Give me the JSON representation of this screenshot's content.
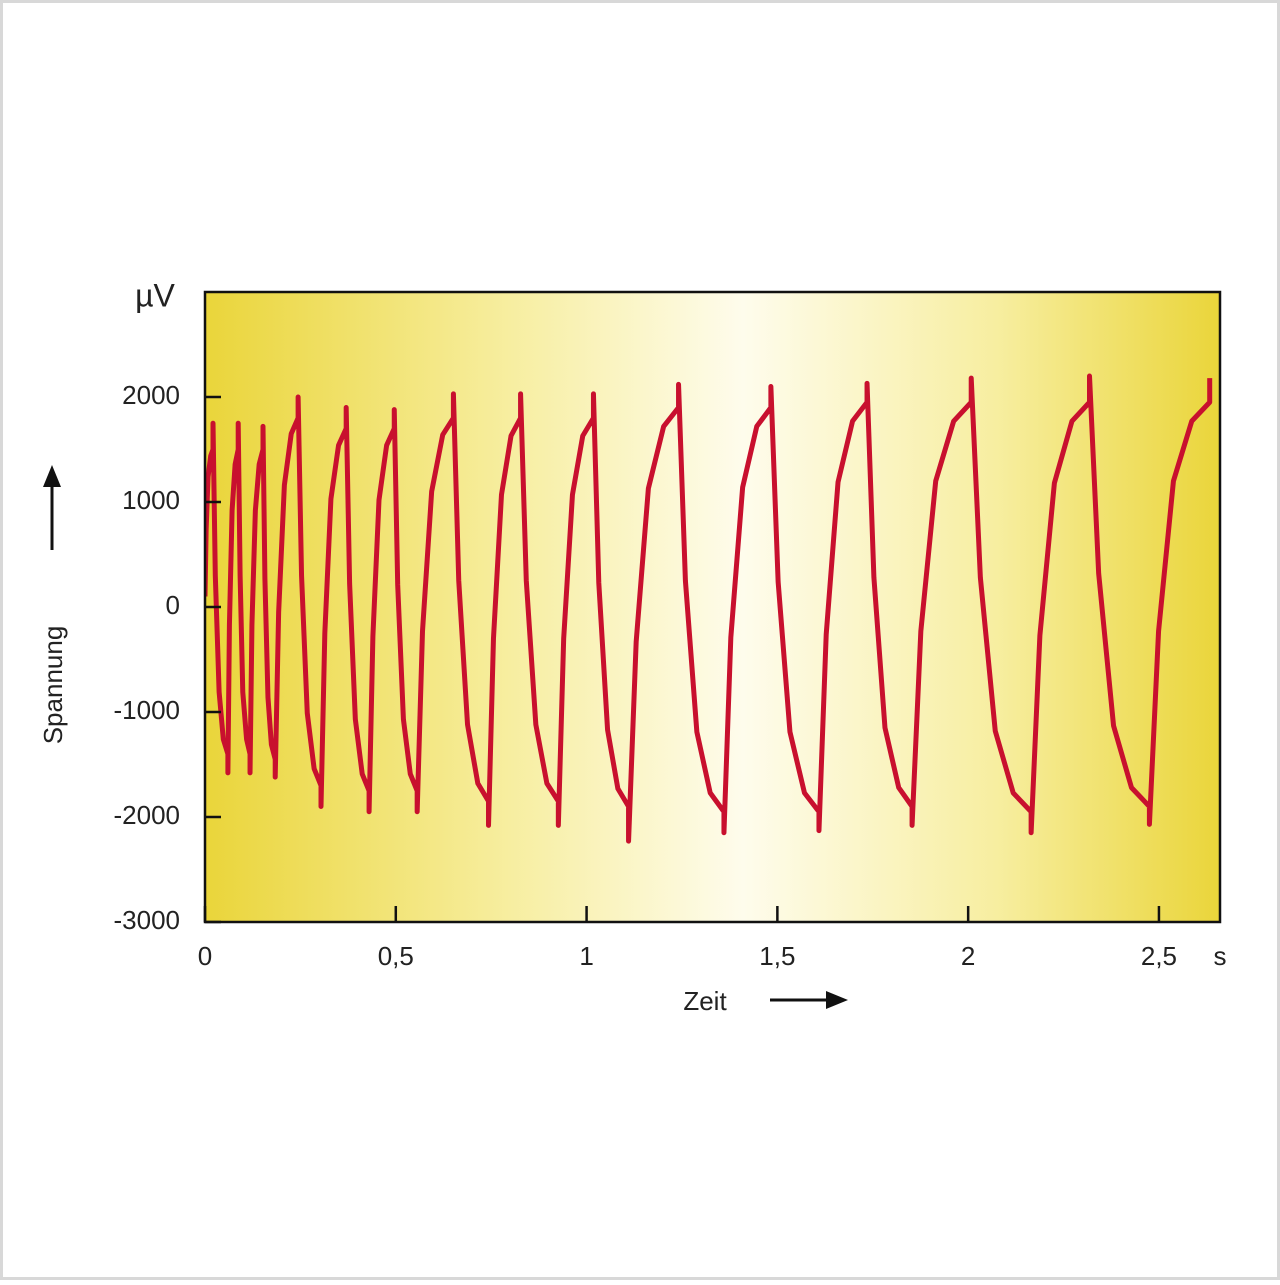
{
  "chart_data": {
    "type": "line",
    "y_unit": "µV",
    "x_unit": "s",
    "xlabel": "Zeit",
    "ylabel": "Spannung",
    "color": "#c8102e",
    "xlim": [
      0,
      2.66
    ],
    "ylim": [
      -3000,
      3000
    ],
    "xticks": [
      0,
      {
        "value": 0.5,
        "label": "0,5"
      },
      1,
      {
        "value": 1.5,
        "label": "1,5"
      },
      2,
      {
        "value": 2.5,
        "label": "2,5"
      }
    ],
    "yticks": [
      -3000,
      -2000,
      -1000,
      0,
      1000,
      2000
    ],
    "x": [
      0,
      0.003,
      0.008,
      0.015,
      0.021,
      0.021,
      0.027,
      0.037,
      0.048,
      0.06,
      0.06,
      0.064,
      0.071,
      0.079,
      0.087,
      0.087,
      0.092,
      0.099,
      0.109,
      0.118,
      0.118,
      0.123,
      0.132,
      0.142,
      0.152,
      0.152,
      0.157,
      0.165,
      0.174,
      0.184,
      0.184,
      0.193,
      0.208,
      0.226,
      0.244,
      0.244,
      0.253,
      0.268,
      0.286,
      0.304,
      0.304,
      0.314,
      0.33,
      0.35,
      0.37,
      0.37,
      0.379,
      0.394,
      0.412,
      0.43,
      0.43,
      0.44,
      0.456,
      0.476,
      0.496,
      0.496,
      0.505,
      0.52,
      0.538,
      0.556,
      0.556,
      0.57,
      0.594,
      0.623,
      0.651,
      0.651,
      0.665,
      0.688,
      0.715,
      0.743,
      0.743,
      0.756,
      0.777,
      0.802,
      0.827,
      0.827,
      0.842,
      0.867,
      0.896,
      0.926,
      0.926,
      0.94,
      0.963,
      0.99,
      1.018,
      1.018,
      1.032,
      1.055,
      1.082,
      1.11,
      1.11,
      1.13,
      1.162,
      1.202,
      1.241,
      1.241,
      1.259,
      1.289,
      1.324,
      1.36,
      1.36,
      1.378,
      1.409,
      1.446,
      1.483,
      1.483,
      1.502,
      1.533,
      1.571,
      1.609,
      1.609,
      1.628,
      1.659,
      1.697,
      1.735,
      1.735,
      1.753,
      1.782,
      1.818,
      1.853,
      1.853,
      1.876,
      1.915,
      1.962,
      2.008,
      2.008,
      2.032,
      2.071,
      2.118,
      2.165,
      2.165,
      2.188,
      2.226,
      2.272,
      2.318,
      2.318,
      2.342,
      2.381,
      2.428,
      2.475,
      2.475,
      2.499,
      2.538,
      2.586,
      2.633,
      2.633
    ],
    "values": [
      100,
      740,
      1240,
      1440,
      1500,
      1750,
      300,
      -810,
      -1260,
      -1400,
      -1580,
      -170,
      920,
      1360,
      1500,
      1750,
      300,
      -810,
      -1260,
      -1400,
      -1580,
      -170,
      920,
      1360,
      1500,
      1720,
      270,
      -860,
      -1310,
      -1450,
      -1620,
      -50,
      1160,
      1650,
      1800,
      2000,
      300,
      -1010,
      -1540,
      -1700,
      -1900,
      -250,
      1030,
      1540,
      1700,
      1900,
      220,
      -1070,
      -1590,
      -1750,
      -1950,
      -280,
      1020,
      1540,
      1700,
      1880,
      210,
      -1070,
      -1590,
      -1750,
      -1950,
      -230,
      1100,
      1640,
      1800,
      2030,
      250,
      -1120,
      -1680,
      -1850,
      -2080,
      -300,
      1070,
      1630,
      1800,
      2030,
      250,
      -1120,
      -1680,
      -1850,
      -2080,
      -300,
      1070,
      1630,
      1800,
      2030,
      230,
      -1170,
      -1730,
      -1900,
      -2230,
      -330,
      1130,
      1720,
      1900,
      2120,
      250,
      -1190,
      -1770,
      -1950,
      -2150,
      -290,
      1140,
      1720,
      1900,
      2100,
      240,
      -1190,
      -1770,
      -1950,
      -2130,
      -260,
      1190,
      1770,
      1950,
      2130,
      280,
      -1150,
      -1720,
      -1900,
      -2080,
      -230,
      1200,
      1770,
      1950,
      2180,
      280,
      -1180,
      -1770,
      -1950,
      -2150,
      -270,
      1180,
      1770,
      1950,
      2200,
      320,
      -1130,
      -1720,
      -1900,
      -2070,
      -230,
      1200,
      1770,
      1950,
      2180
    ]
  }
}
